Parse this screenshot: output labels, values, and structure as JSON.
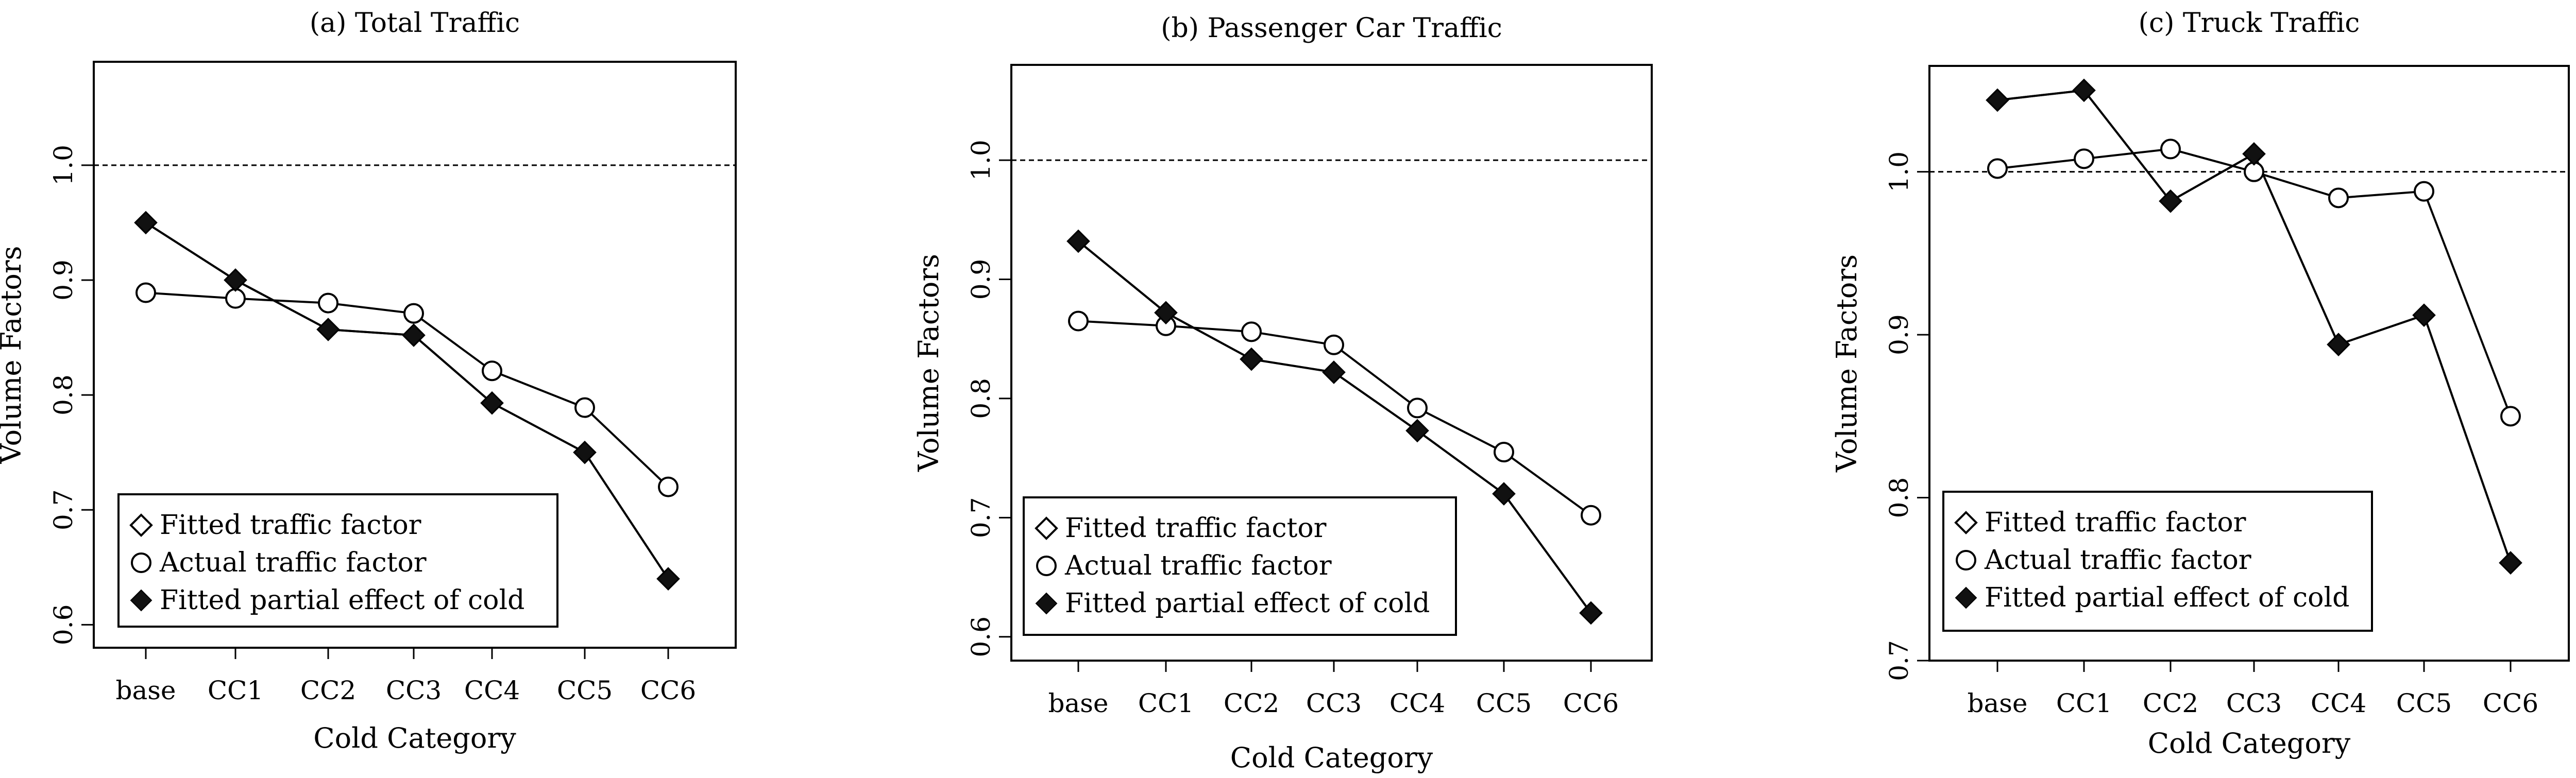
{
  "chart_data": [
    {
      "type": "line",
      "title": "(a) Total Traffic",
      "xlabel": "Cold Category",
      "ylabel": "Volume Factors",
      "categories": [
        "base",
        "CC1",
        "CC2",
        "CC3",
        "CC4",
        "CC5",
        "CC6"
      ],
      "ylim": [
        0.58,
        1.09
      ],
      "yticks": [
        "0.6",
        "0.7",
        "0.8",
        "0.9",
        "1.0"
      ],
      "yticks_values": [
        0.6,
        0.7,
        0.8,
        0.9,
        1.0
      ],
      "reference_line": 1.0,
      "legend_position": "bottom-left",
      "series": [
        {
          "name": "Fitted traffic factor",
          "marker": "diamond-open",
          "values": [
            0.95,
            0.9,
            0.857,
            0.852,
            0.793,
            0.75,
            0.64
          ]
        },
        {
          "name": "Actual traffic factor",
          "marker": "circle-open",
          "values": [
            0.889,
            0.884,
            0.88,
            0.871,
            0.821,
            0.789,
            0.72
          ]
        },
        {
          "name": "Fitted partial effect of cold",
          "marker": "diamond-filled",
          "values": [
            0.95,
            0.9,
            0.857,
            0.852,
            0.793,
            0.75,
            0.64
          ]
        }
      ]
    },
    {
      "type": "line",
      "title": "(b) Passenger Car Traffic",
      "xlabel": "Cold Category",
      "ylabel": "Volume Factors",
      "categories": [
        "base",
        "CC1",
        "CC2",
        "CC3",
        "CC4",
        "CC5",
        "CC6"
      ],
      "ylim": [
        0.58,
        1.08
      ],
      "yticks": [
        "0.6",
        "0.7",
        "0.8",
        "0.9",
        "1.0"
      ],
      "yticks_values": [
        0.6,
        0.7,
        0.8,
        0.9,
        1.0
      ],
      "reference_line": 1.0,
      "legend_position": "bottom-left",
      "series": [
        {
          "name": "Fitted traffic factor",
          "marker": "diamond-open",
          "values": [
            0.932,
            0.872,
            0.833,
            0.822,
            0.773,
            0.72,
            0.62
          ]
        },
        {
          "name": "Actual traffic factor",
          "marker": "circle-open",
          "values": [
            0.865,
            0.861,
            0.856,
            0.845,
            0.792,
            0.755,
            0.702
          ]
        },
        {
          "name": "Fitted partial effect of cold",
          "marker": "diamond-filled",
          "values": [
            0.932,
            0.872,
            0.833,
            0.822,
            0.773,
            0.72,
            0.62
          ]
        }
      ]
    },
    {
      "type": "line",
      "title": "(c) Truck Traffic",
      "xlabel": "Cold Category",
      "ylabel": "Volume Factors",
      "categories": [
        "base",
        "CC1",
        "CC2",
        "CC3",
        "CC4",
        "CC5",
        "CC6"
      ],
      "ylim": [
        0.7,
        1.065
      ],
      "yticks": [
        "0.7",
        "0.8",
        "0.9",
        "1.0"
      ],
      "yticks_values": [
        0.7,
        0.8,
        0.9,
        1.0
      ],
      "reference_line": 1.0,
      "legend_position": "bottom-left",
      "series": [
        {
          "name": "Fitted traffic factor",
          "marker": "diamond-open",
          "values": [
            1.044,
            1.05,
            0.982,
            1.011,
            0.894,
            0.912,
            0.76
          ]
        },
        {
          "name": "Actual traffic factor",
          "marker": "circle-open",
          "values": [
            1.002,
            1.008,
            1.014,
            1.0,
            0.984,
            0.988,
            0.85
          ]
        },
        {
          "name": "Fitted partial effect of cold",
          "marker": "diamond-filled",
          "values": [
            1.044,
            1.05,
            0.982,
            1.011,
            0.894,
            0.912,
            0.76
          ]
        }
      ]
    }
  ]
}
